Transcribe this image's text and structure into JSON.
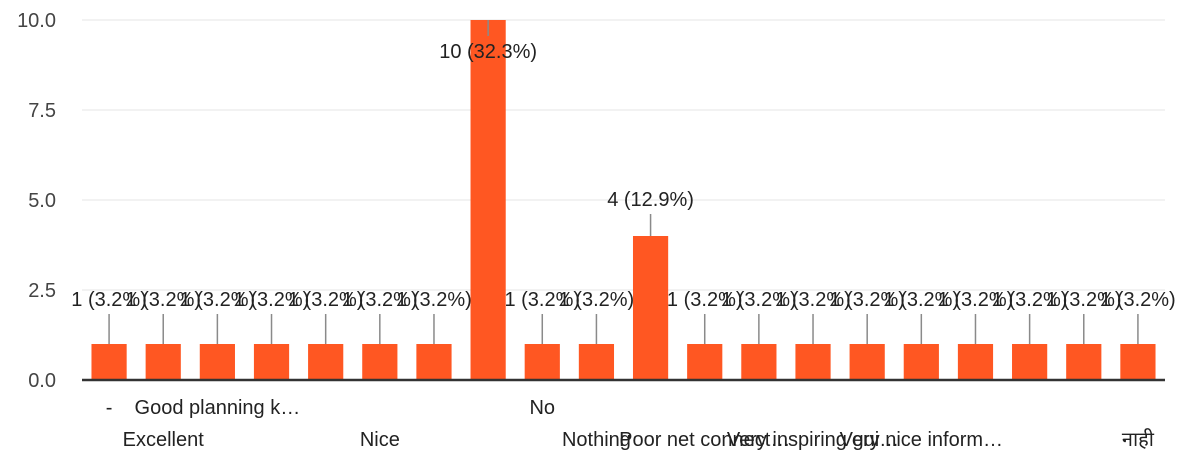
{
  "chart_data": {
    "type": "bar",
    "categories": [
      "-",
      "Excellent",
      "Good planning k…",
      "",
      "",
      "Nice",
      "",
      "",
      "No",
      "Nothing",
      "",
      "Poor net connect…",
      "",
      "Very inspiring gui…",
      "",
      "Very nice inform…",
      "",
      "",
      "",
      "नाही"
    ],
    "values": [
      1,
      1,
      1,
      1,
      1,
      1,
      1,
      10,
      1,
      1,
      4,
      1,
      1,
      1,
      1,
      1,
      1,
      1,
      1,
      1
    ],
    "data_labels": [
      "1 (3.2%)",
      "1 (3.2%)",
      "1 (3.2%)",
      "1 (3.2%)",
      "1 (3.2%)",
      "1 (3.2%)",
      "1 (3.2%)",
      "10 (32.3%)",
      "1 (3.2%)",
      "1 (3.2%)",
      "4 (12.9%)",
      "1 (3.2%)",
      "1 (3.2%)",
      "1 (3.2%)",
      "1 (3.2%)",
      "1 (3.2%)",
      "1 (3.2%)",
      "1 (3.2%)",
      "1 (3.2%)",
      "1 (3.2%)"
    ],
    "yticks": [
      "0.0",
      "2.5",
      "5.0",
      "7.5",
      "10.0"
    ],
    "ylim": [
      0,
      10
    ],
    "grid": true,
    "bar_color": "#ff5722",
    "title": "",
    "xlabel": "",
    "ylabel": ""
  }
}
